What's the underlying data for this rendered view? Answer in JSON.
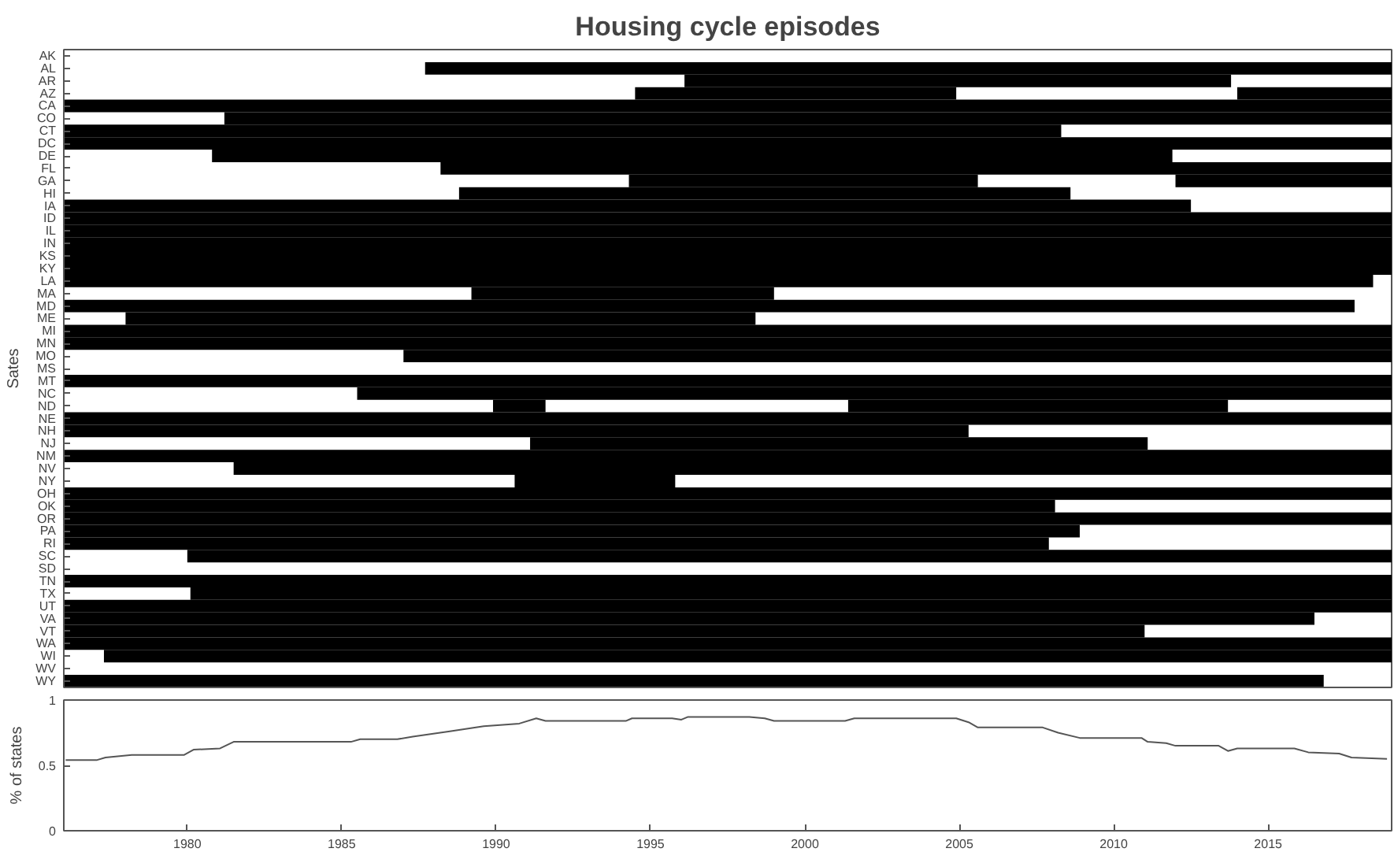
{
  "chart_data": [
    {
      "type": "bar",
      "orientation": "horizontal",
      "title": "Housing cycle episodes",
      "ylabel": "Sates",
      "grid": false,
      "tick_labels": "y",
      "xlim": [
        1976,
        2019
      ],
      "categories": [
        "AK",
        "AL",
        "AR",
        "AZ",
        "CA",
        "CO",
        "CT",
        "DC",
        "DE",
        "FL",
        "GA",
        "HI",
        "IA",
        "ID",
        "IL",
        "IN",
        "KS",
        "KY",
        "LA",
        "MA",
        "MD",
        "ME",
        "MI",
        "MN",
        "MO",
        "MS",
        "MT",
        "NC",
        "ND",
        "NE",
        "NH",
        "NJ",
        "NM",
        "NV",
        "NY",
        "OH",
        "OK",
        "OR",
        "PA",
        "RI",
        "SC",
        "SD",
        "TN",
        "TX",
        "UT",
        "VA",
        "VT",
        "WA",
        "WI",
        "WV",
        "WY"
      ],
      "series": [
        {
          "color": "#000000",
          "base": [
            null,
            1987.7,
            1996.1,
            1994.5,
            1976,
            1981.2,
            1976,
            1976,
            1980.8,
            1988.2,
            1994.3,
            1988.8,
            1976,
            1976,
            1976,
            1976,
            1976,
            1976,
            1976,
            1989.2,
            1976,
            1978.0,
            1976,
            1976,
            1987.0,
            null,
            1976,
            1985.5,
            1989.9,
            1976,
            1976,
            1991.1,
            1976,
            1981.5,
            1990.6,
            1976,
            1976,
            1976,
            1976,
            1976,
            1980.0,
            null,
            1976,
            1980.1,
            1976,
            1976,
            1976,
            1976,
            1977.3,
            null,
            1976
          ],
          "values": [
            null,
            31.3,
            17.7,
            10.4,
            43,
            37.8,
            32.3,
            43,
            31.1,
            30.8,
            11.3,
            19.8,
            36.5,
            43,
            43,
            43,
            43,
            43,
            42.4,
            9.8,
            41.8,
            20.4,
            43,
            43,
            32,
            null,
            43,
            33.5,
            1.7,
            43,
            29.3,
            20,
            43,
            37.5,
            5.2,
            43,
            32.1,
            43,
            32.9,
            31.9,
            39,
            null,
            43,
            38.9,
            43,
            40.5,
            35,
            43,
            41.7,
            null,
            40.8
          ]
        },
        {
          "color": "#000000",
          "base": [
            null,
            null,
            null,
            2014.0,
            null,
            null,
            null,
            null,
            null,
            null,
            2012.0,
            null,
            null,
            null,
            null,
            null,
            null,
            null,
            null,
            null,
            null,
            null,
            null,
            null,
            null,
            null,
            null,
            null,
            2001.4,
            null,
            null,
            null,
            null,
            null,
            null,
            null,
            null,
            null,
            null,
            null,
            null,
            null,
            null,
            null,
            null,
            null,
            null,
            null,
            null,
            null,
            null
          ],
          "values": [
            null,
            null,
            null,
            5,
            null,
            null,
            null,
            null,
            null,
            null,
            7,
            null,
            null,
            null,
            null,
            null,
            null,
            null,
            null,
            null,
            null,
            null,
            null,
            null,
            null,
            null,
            null,
            null,
            12.3,
            null,
            null,
            null,
            null,
            null,
            null,
            null,
            null,
            null,
            null,
            null,
            null,
            null,
            null,
            null,
            null,
            null,
            null,
            null,
            null,
            null,
            null
          ]
        }
      ]
    },
    {
      "type": "line",
      "ylabel": "% of states",
      "grid": false,
      "xlim": [
        1976,
        2019
      ],
      "ylim": [
        0,
        1
      ],
      "yticks": [
        0,
        0.5,
        1
      ],
      "xticks": [
        1980,
        1985,
        1990,
        1995,
        2000,
        2005,
        2010,
        2015
      ],
      "series": [
        {
          "color": "#555555",
          "x": [
            1976.06,
            1977.06,
            1977.35,
            1978.2,
            1979.9,
            1980.2,
            1981.06,
            1981.5,
            1985.3,
            1985.6,
            1986.8,
            1987.3,
            1988.5,
            1989.6,
            1990.75,
            1991.3,
            1991.6,
            1994.2,
            1994.4,
            1995.7,
            1996.0,
            1996.2,
            1998.2,
            1998.7,
            1999.0,
            2001.3,
            2001.6,
            2004.9,
            2005.3,
            2005.6,
            2007.7,
            2008.2,
            2008.9,
            2010.9,
            2011.1,
            2011.7,
            2012.0,
            2013.4,
            2013.7,
            2014.0,
            2015.85,
            2016.3,
            2017.3,
            2017.7,
            2018.85
          ],
          "values": [
            0.54,
            0.54,
            0.56,
            0.58,
            0.58,
            0.62,
            0.63,
            0.68,
            0.68,
            0.7,
            0.7,
            0.72,
            0.76,
            0.8,
            0.82,
            0.86,
            0.84,
            0.84,
            0.86,
            0.86,
            0.85,
            0.87,
            0.87,
            0.86,
            0.84,
            0.84,
            0.86,
            0.86,
            0.83,
            0.79,
            0.79,
            0.75,
            0.71,
            0.71,
            0.68,
            0.67,
            0.65,
            0.65,
            0.61,
            0.63,
            0.63,
            0.6,
            0.59,
            0.56,
            0.55
          ]
        }
      ]
    }
  ]
}
